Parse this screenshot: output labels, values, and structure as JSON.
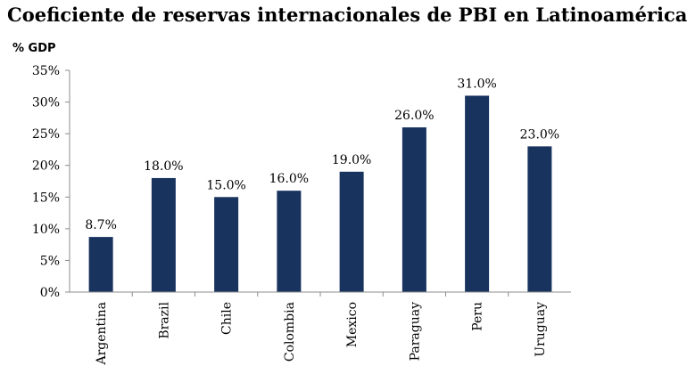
{
  "chart_data": {
    "type": "bar",
    "title": "Coeficiente de reservas internacionales de PBI en Latinoamérica",
    "ylabel": "% GDP",
    "xlabel": "",
    "categories": [
      "Argentina",
      "Brazil",
      "Chile",
      "Colombia",
      "Mexico",
      "Paraguay",
      "Peru",
      "Uruguay"
    ],
    "values": [
      8.7,
      18.0,
      15.0,
      16.0,
      19.0,
      26.0,
      31.0,
      23.0
    ],
    "data_labels": [
      "8.7%",
      "18.0%",
      "15.0%",
      "16.0%",
      "19.0%",
      "26.0%",
      "31.0%",
      "23.0%"
    ],
    "ylim": [
      0,
      35
    ],
    "yticks": [
      0,
      5,
      10,
      15,
      20,
      25,
      30,
      35
    ],
    "ytick_labels": [
      "0%",
      "5%",
      "10%",
      "15%",
      "20%",
      "25%",
      "30%",
      "35%"
    ],
    "grid": false,
    "legend": "none",
    "bar_color": "#17335e"
  }
}
